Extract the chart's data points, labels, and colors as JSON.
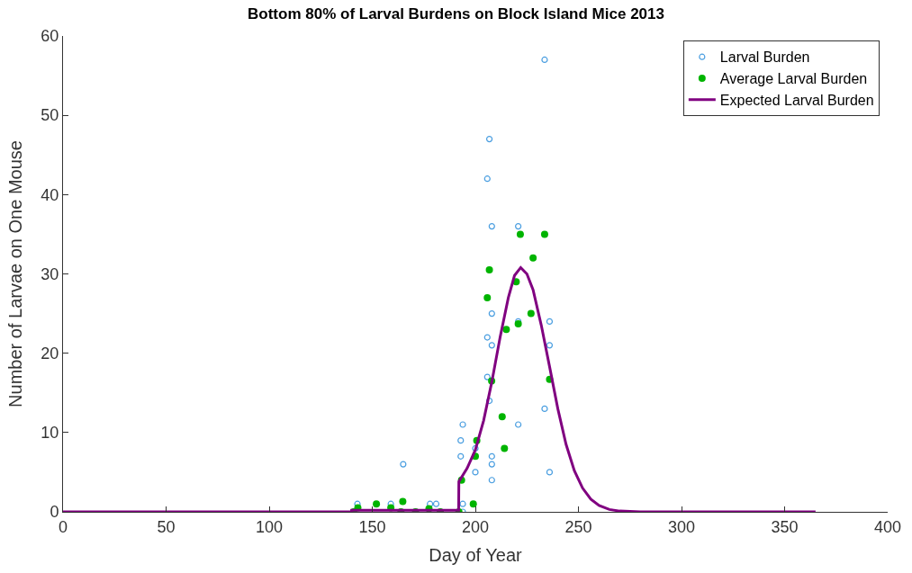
{
  "chart_data": {
    "type": "scatter",
    "title": "Bottom 80% of Larval Burdens on Block Island Mice 2013",
    "xlabel": "Day of Year",
    "ylabel": "Number of Larvae on One Mouse",
    "xlim": [
      0,
      400
    ],
    "xticks": [
      0,
      50,
      100,
      150,
      200,
      250,
      300,
      350,
      400
    ],
    "ylim": [
      0,
      60
    ],
    "yticks": [
      0,
      10,
      20,
      30,
      40,
      50,
      60
    ],
    "legend": "top right",
    "series": [
      {
        "name": "Larval Burden",
        "color": "#4a9ee0",
        "marker": "circle-open",
        "x": [
          142.8,
          151,
          159,
          165,
          178,
          181,
          206.8,
          205.8,
          208,
          220.8,
          233.6,
          208,
          220.8,
          236,
          205.8,
          208,
          236,
          205.8,
          206.8,
          233.6,
          193.9,
          220.8,
          192.9,
          200,
          192.9,
          208,
          208,
          200,
          236,
          208,
          193.9,
          193.9
        ],
        "values": [
          1,
          null,
          1,
          6,
          1,
          1,
          47,
          42,
          36,
          36,
          57,
          25,
          24,
          24,
          22,
          21,
          21,
          17,
          14,
          13,
          11,
          11,
          9,
          8,
          7,
          7,
          6,
          5,
          5,
          4,
          1,
          0
        ]
      },
      {
        "name": "Average Larval Burden",
        "color": "#00b400",
        "marker": "circle",
        "x": [
          141,
          143,
          152,
          159,
          163.9,
          164.8,
          171,
          177.5,
          183,
          192,
          193.3,
          199,
          200,
          200.7,
          214.1,
          213,
          207.9,
          236,
          205.8,
          206.8,
          215,
          220.8,
          227,
          219.8,
          228,
          221.8,
          233.6
        ],
        "values": [
          0,
          0.5,
          1,
          0.5,
          0,
          1.3,
          0,
          0.4,
          0,
          0,
          4,
          1,
          7,
          9,
          8,
          12,
          16.5,
          16.7,
          27,
          30.5,
          23,
          23.7,
          25,
          29,
          32,
          35,
          35
        ]
      },
      {
        "name": "Expected Larval Burden",
        "color": "#800080",
        "type": "line",
        "marker": "none",
        "x": [
          0,
          139.9,
          140,
          191.9,
          192,
          196,
          200,
          204,
          208,
          212,
          216,
          219,
          222,
          225,
          228,
          232,
          236,
          240,
          244,
          248,
          252,
          256,
          260,
          265,
          270,
          280,
          365
        ],
        "values": [
          0,
          0,
          0.2,
          0.2,
          3.8,
          5.5,
          7.8,
          11.5,
          16.4,
          22,
          27,
          29.8,
          30.8,
          30,
          28,
          23.5,
          18.3,
          13,
          8.5,
          5.2,
          3,
          1.6,
          0.8,
          0.3,
          0.1,
          0,
          0
        ]
      }
    ]
  }
}
